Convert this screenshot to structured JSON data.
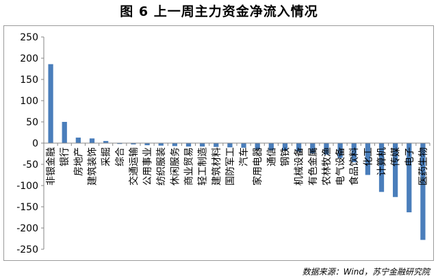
{
  "title": "图 6 上一周主力资金净流入情况",
  "source": "数据来源：Wind，苏宁金融研究院",
  "chart_data": {
    "type": "bar",
    "title": "图 6 上一周主力资金净流入情况",
    "xlabel": "",
    "ylabel": "",
    "ylim": [
      -250,
      250
    ],
    "yticks": [
      250,
      200,
      150,
      100,
      50,
      0,
      -50,
      -100,
      -150,
      -200,
      -250
    ],
    "grid": false,
    "legend": "none",
    "bar_color": "#4a7ebb",
    "categories": [
      "非银金融",
      "银行",
      "房地产",
      "建筑装饰",
      "采掘",
      "综合",
      "交通运输",
      "公用事业",
      "纺织服装",
      "休闲服务",
      "商业贸易",
      "轻工制造",
      "建筑材料",
      "国防军工",
      "汽车",
      "家用电器",
      "通信",
      "钢铁",
      "机械设备",
      "有色金属",
      "农林牧渔",
      "电气设备",
      "食品饮料",
      "化工",
      "计算机",
      "传媒",
      "电子",
      "医药生物"
    ],
    "values": [
      186,
      50,
      13,
      11,
      5,
      -2,
      -3,
      -5,
      -6,
      -7,
      -8,
      -8,
      -9,
      -10,
      -11,
      -15,
      -17,
      -18,
      -20,
      -24,
      -27,
      -35,
      -45,
      -75,
      -115,
      -127,
      -163,
      -228
    ]
  }
}
